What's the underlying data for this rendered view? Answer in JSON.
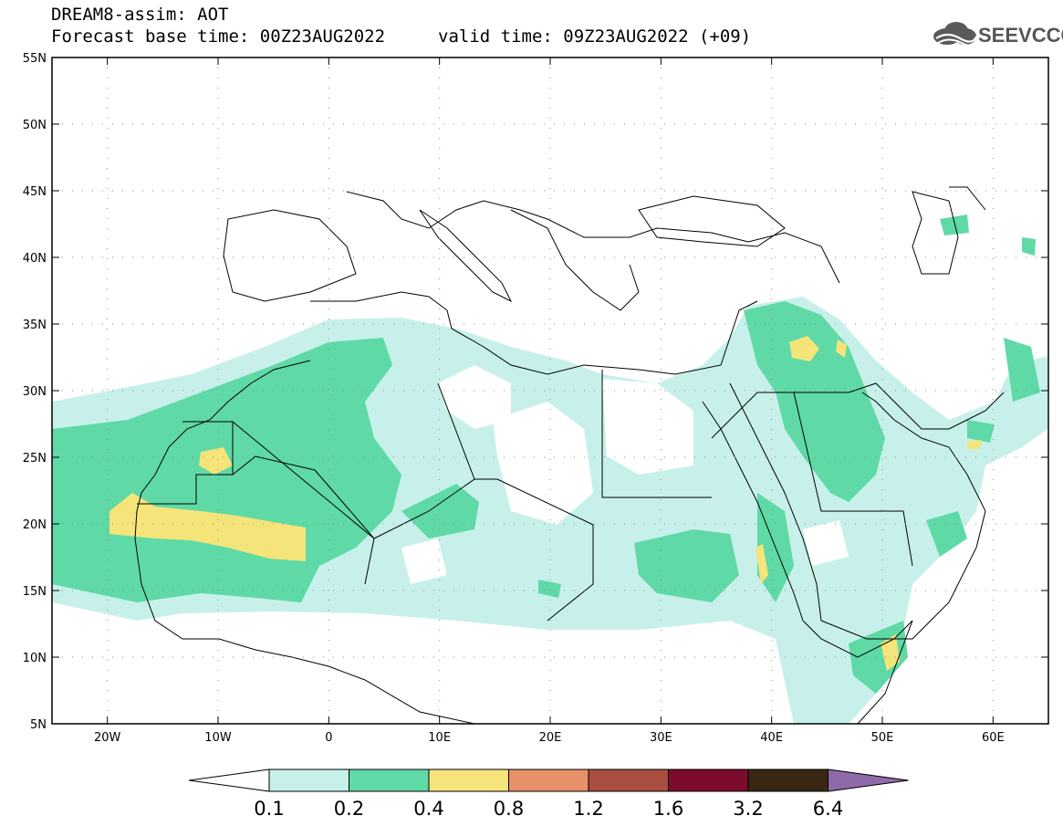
{
  "header": {
    "line1": "DREAM8-assim: AOT",
    "line2": "Forecast base time: 00Z23AUG2022",
    "valid": "valid time: 09Z23AUG2022 (+09)",
    "logo_text": "SEEVCCC",
    "logo_icon": "cloud-icon"
  },
  "map": {
    "lon_range": [
      -25,
      65
    ],
    "lat_range": [
      5,
      55
    ],
    "lon_ticks": [
      {
        "value": -20,
        "label": "20W"
      },
      {
        "value": -10,
        "label": "10W"
      },
      {
        "value": 0,
        "label": "0"
      },
      {
        "value": 10,
        "label": "10E"
      },
      {
        "value": 20,
        "label": "20E"
      },
      {
        "value": 30,
        "label": "30E"
      },
      {
        "value": 40,
        "label": "40E"
      },
      {
        "value": 50,
        "label": "50E"
      },
      {
        "value": 60,
        "label": "60E"
      }
    ],
    "lat_ticks": [
      {
        "value": 55,
        "label": "55N"
      },
      {
        "value": 50,
        "label": "50N"
      },
      {
        "value": 45,
        "label": "45N"
      },
      {
        "value": 40,
        "label": "40N"
      },
      {
        "value": 35,
        "label": "35N"
      },
      {
        "value": 30,
        "label": "30N"
      },
      {
        "value": 25,
        "label": "25N"
      },
      {
        "value": 20,
        "label": "20N"
      },
      {
        "value": 15,
        "label": "15N"
      },
      {
        "value": 10,
        "label": "10N"
      },
      {
        "value": 5,
        "label": "5N"
      }
    ],
    "grid": "dotted"
  },
  "colorbar": {
    "labels": [
      "0.1",
      "0.2",
      "0.4",
      "0.8",
      "1.2",
      "1.6",
      "3.2",
      "6.4"
    ],
    "colors": [
      "#c7f0ea",
      "#5fd9a6",
      "#f5e47a",
      "#e8906a",
      "#a94e40",
      "#7c0c2c",
      "#3a2614",
      "#8f6aa8"
    ],
    "below_color": "#ffffff"
  }
}
